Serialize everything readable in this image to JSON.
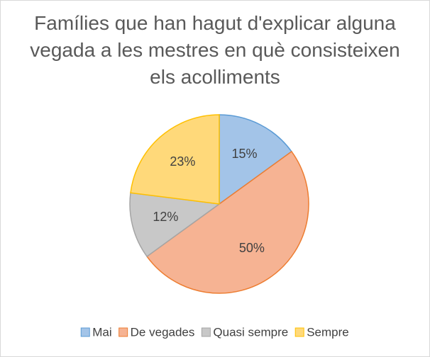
{
  "chart_data": {
    "type": "pie",
    "title": "Famílies que han hagut d'explicar alguna vegada a les mestres en què consisteixen els acolliments",
    "categories": [
      "Mai",
      "De vegades",
      "Quasi sempre",
      "Sempre"
    ],
    "values": [
      15,
      50,
      12,
      23
    ],
    "value_labels": [
      "15%",
      "50%",
      "12%",
      "23%"
    ],
    "colors": [
      "#a3c4e8",
      "#f6b393",
      "#c8c8c8",
      "#ffd97a"
    ],
    "edge_colors": [
      "#5b9bd5",
      "#ed7d31",
      "#a5a5a5",
      "#ffc000"
    ],
    "legend": "bottom"
  }
}
